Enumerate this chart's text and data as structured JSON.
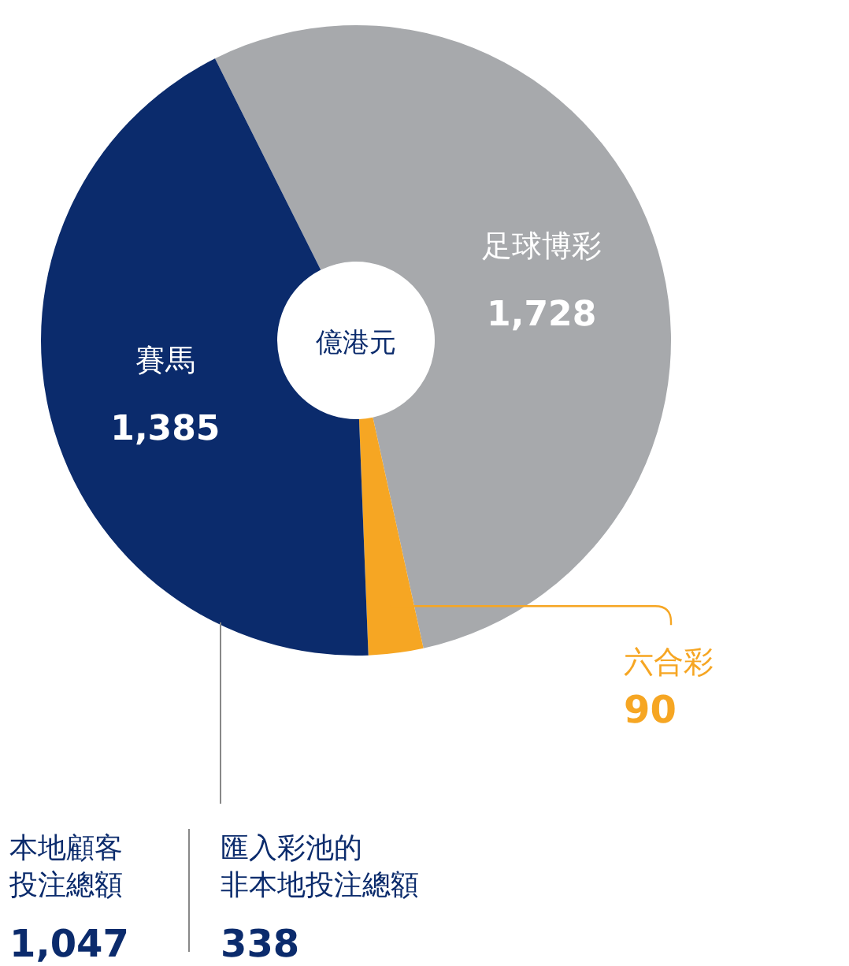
{
  "chart_data": {
    "type": "donut",
    "categories": [
      "足球博彩",
      "六合彩",
      "賽馬"
    ],
    "values": [
      1728,
      90,
      1385
    ],
    "value_labels": [
      "1,728",
      "90",
      "1,385"
    ],
    "colors": [
      "#a7a9ac",
      "#f6a623",
      "#0b2b6c"
    ],
    "annotations": [
      "億港元",
      "本地顧客投注總額",
      "1,047",
      "匯入彩池的非本地投注總額",
      "338"
    ]
  }
}
